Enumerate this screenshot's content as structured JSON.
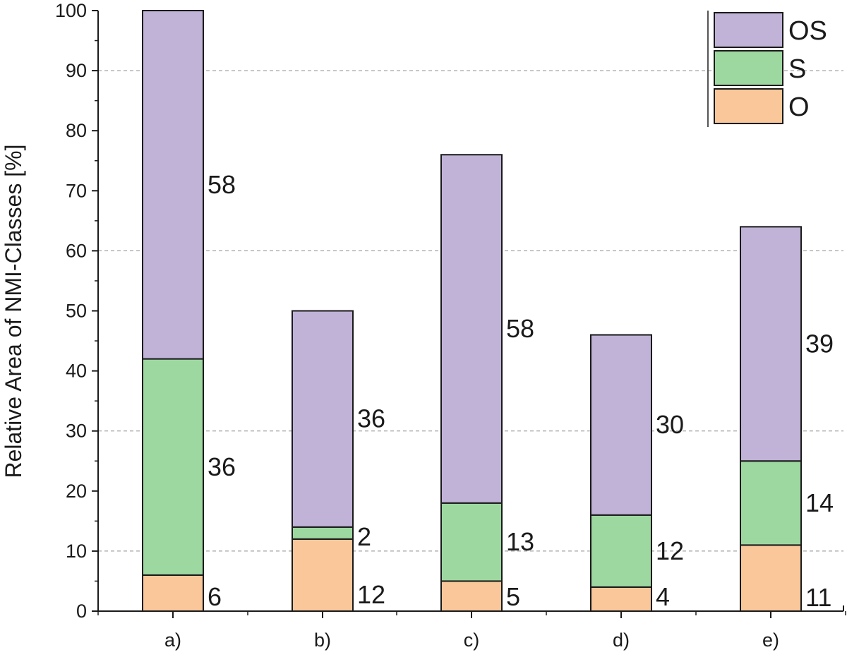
{
  "chart_data": {
    "type": "bar",
    "stacked": true,
    "title": "",
    "xlabel": "",
    "ylabel": "Relative Area of NMI-Classes [%]",
    "ylim": [
      0,
      100
    ],
    "yticks": [
      0,
      10,
      20,
      30,
      40,
      50,
      60,
      70,
      80,
      90,
      100
    ],
    "gridlines_at": [
      10,
      30,
      60,
      90
    ],
    "categories": [
      "a)",
      "b)",
      "c)",
      "d)",
      "e)"
    ],
    "series": [
      {
        "name": "O",
        "color": "#f9c79a",
        "values": [
          6,
          12,
          5,
          4,
          11
        ]
      },
      {
        "name": "S",
        "color": "#9dd8a0",
        "values": [
          36,
          2,
          13,
          12,
          14
        ]
      },
      {
        "name": "OS",
        "color": "#c1b2d8",
        "values": [
          58,
          36,
          58,
          30,
          39
        ]
      }
    ],
    "legend": {
      "position": "top-right",
      "order": [
        "OS",
        "S",
        "O"
      ]
    }
  }
}
